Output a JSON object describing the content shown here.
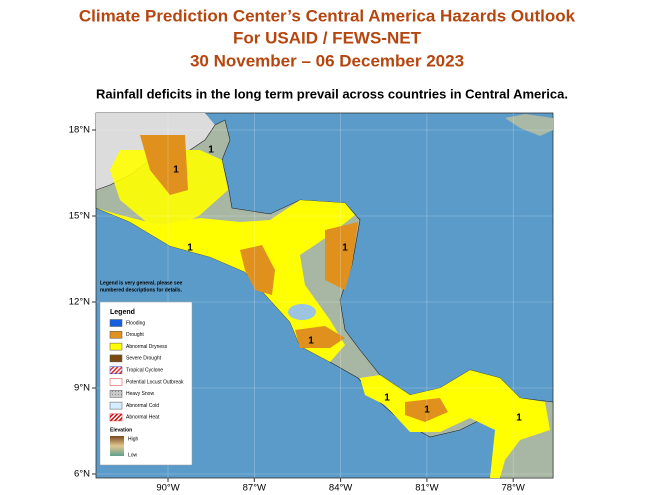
{
  "header": {
    "title_lines": [
      "Climate Prediction Center’s Central America Hazards Outlook",
      "For USAID / FEWS-NET",
      "30 November – 06 December 2023"
    ]
  },
  "subtitle": "Rainfall deficits in the long term prevail across countries in Central America.",
  "map": {
    "lat_labels": [
      "18°N",
      "15°N",
      "12°N",
      "9°N",
      "6°N"
    ],
    "lon_labels": [
      "90°W",
      "87°W",
      "84°W",
      "81°W",
      "78°W"
    ],
    "region_labels": [
      "1",
      "1",
      "1",
      "1",
      "1",
      "1",
      "1",
      "1"
    ]
  },
  "legend": {
    "note_lines": [
      "Legend is very general, please see",
      "numbered descriptions for details."
    ],
    "title": "Legend",
    "items": [
      "Flooding",
      "Drought",
      "Abnormal Dryness",
      "Severe Drought",
      "Tropical Cyclone",
      "Potential Locust Outbreak",
      "Heavy Snow",
      "Abnormal Cold",
      "Abnormal Heat"
    ],
    "elevation_title": "Elevation",
    "elevation_high": "High",
    "elevation_low": "Low"
  }
}
